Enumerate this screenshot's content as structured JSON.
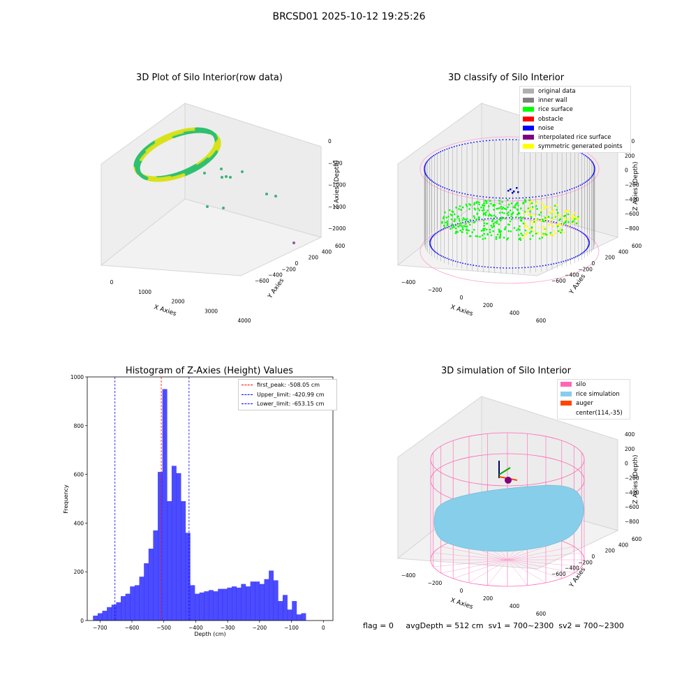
{
  "figure": {
    "suptitle": "BRCSD01 2025-10-12 19:25:26"
  },
  "footer": {
    "flag": "flag = 0",
    "avg_depth": "avgDepth = 512 cm",
    "sv1": "sv1 = 700~2300",
    "sv2": "sv2 = 700~2300"
  },
  "panel_raw": {
    "title": "3D Plot of Silo Interior(row data)",
    "xlabel": "X Axies",
    "ylabel": "Y Axies",
    "zlabel": "Z Axies (Depth)",
    "x_ticks": [
      "0",
      "1000",
      "2000",
      "3000",
      "4000"
    ],
    "y_ticks": [
      "600",
      "400",
      "200",
      "0",
      "−200",
      "−400",
      "−600"
    ],
    "z_ticks": [
      "0",
      "−500",
      "−1000",
      "−1500",
      "−2000"
    ],
    "colors": {
      "surface_a": "#2fbf71",
      "surface_b": "#d8e21b",
      "outlier": "#3cb37a",
      "far": "#8e5a9c"
    }
  },
  "panel_classify": {
    "title": "3D classify of Silo Interior",
    "xlabel": "X Axies",
    "ylabel": "Y Axies",
    "zlabel": "Z Axies (Depth)",
    "x_ticks": [
      "−400",
      "−200",
      "0",
      "200",
      "400",
      "600"
    ],
    "y_ticks": [
      "600",
      "400",
      "200",
      "0",
      "−200",
      "−400",
      "−600"
    ],
    "z_ticks": [
      "400",
      "200",
      "0",
      "−200",
      "−400",
      "−600",
      "−800"
    ],
    "legend": [
      {
        "label": "original data",
        "color": "#b0b0b0"
      },
      {
        "label": "inner wall",
        "color": "#808080"
      },
      {
        "label": "rice surface",
        "color": "#00ff00"
      },
      {
        "label": "obstacle",
        "color": "#ff0000"
      },
      {
        "label": "noise",
        "color": "#0000ff"
      },
      {
        "label": "interpolated rice surface",
        "color": "#800080"
      },
      {
        "label": "symmetric generated points",
        "color": "#ffff00"
      }
    ]
  },
  "panel_sim": {
    "title": "3D simulation of Silo Interior",
    "xlabel": "X Axies",
    "ylabel": "Y Axies",
    "zlabel": "Z Axies (Depth)",
    "x_ticks": [
      "−400",
      "−200",
      "0",
      "200",
      "400",
      "600"
    ],
    "y_ticks": [
      "600",
      "400",
      "200",
      "0",
      "−200",
      "−400",
      "−600"
    ],
    "z_ticks": [
      "400",
      "200",
      "0",
      "−200",
      "−400",
      "−600",
      "−800"
    ],
    "legend": [
      {
        "label": "silo",
        "color": "#ff69b4"
      },
      {
        "label": "rice simulation",
        "color": "#87ceeb"
      },
      {
        "label": "auger",
        "color": "#ff4500"
      },
      {
        "label": "center(114,-35)",
        "color": ""
      }
    ]
  },
  "chart_data": {
    "type": "bar",
    "title": "Histogram of Z-Axies (Height) Values",
    "xlabel": "Depth (cm)",
    "ylabel": "Frequency",
    "xlim": [
      -740,
      30
    ],
    "ylim": [
      0,
      1000
    ],
    "x_ticks": [
      -700,
      -600,
      -500,
      -400,
      -300,
      -200,
      -100,
      0
    ],
    "x_tick_labels": [
      "−700",
      "−600",
      "−500",
      "−400",
      "−300",
      "−200",
      "−100",
      "0"
    ],
    "y_ticks": [
      0,
      200,
      400,
      600,
      800,
      1000
    ],
    "y_tick_labels": [
      "0",
      "200",
      "400",
      "600",
      "800",
      "1000"
    ],
    "bar_color": "#0000ff",
    "bin_width": 14.5,
    "bin_start": -722,
    "values": [
      20,
      30,
      40,
      55,
      65,
      75,
      100,
      110,
      140,
      145,
      180,
      235,
      295,
      370,
      610,
      950,
      490,
      635,
      605,
      490,
      360,
      145,
      110,
      115,
      120,
      125,
      120,
      130,
      130,
      135,
      140,
      135,
      150,
      140,
      160,
      160,
      150,
      170,
      205,
      165,
      80,
      105,
      45,
      80,
      25,
      30
    ],
    "lines": [
      {
        "label": "first_peak: -508.05 cm",
        "x": -508.05,
        "color": "#ff0000"
      },
      {
        "label": "Upper_limit: -420.99 cm",
        "x": -420.99,
        "color": "#0000ff"
      },
      {
        "label": "Lower_limit: -653.15 cm",
        "x": -653.15,
        "color": "#0000ff"
      }
    ],
    "legend_position": "upper right",
    "grid": false
  }
}
